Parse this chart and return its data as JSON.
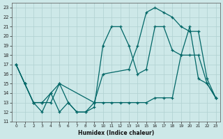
{
  "xlabel": "Humidex (Indice chaleur)",
  "bg_color": "#cde8e8",
  "grid_color": "#b0d0d0",
  "line_color": "#006666",
  "xlim": [
    -0.5,
    23.5
  ],
  "ylim": [
    11,
    23.5
  ],
  "xticks": [
    0,
    1,
    2,
    3,
    4,
    5,
    6,
    7,
    8,
    9,
    10,
    11,
    12,
    13,
    14,
    15,
    16,
    17,
    18,
    19,
    20,
    21,
    22,
    23
  ],
  "yticks": [
    11,
    12,
    13,
    14,
    15,
    16,
    17,
    18,
    19,
    20,
    21,
    22,
    23
  ],
  "line1_x": [
    0,
    1,
    2,
    3,
    4,
    5,
    6,
    7,
    8,
    9,
    10,
    11,
    12,
    13,
    14,
    15,
    16,
    17,
    18,
    19,
    20,
    21,
    22,
    23
  ],
  "line1_y": [
    17,
    15,
    13,
    12,
    14,
    12,
    13,
    12,
    12,
    12.5,
    19,
    21,
    21,
    19,
    16,
    16.5,
    21,
    21,
    18.5,
    18,
    21,
    15.5,
    15,
    13.5
  ],
  "line2_x": [
    0,
    1,
    2,
    3,
    4,
    5,
    9,
    10,
    13,
    14,
    15,
    16,
    17,
    18,
    19,
    20,
    21,
    22,
    23
  ],
  "line2_y": [
    17,
    15,
    13,
    13,
    14,
    15,
    13,
    16,
    16.5,
    19,
    22.5,
    23,
    22.5,
    22,
    21,
    20.5,
    20.5,
    15.5,
    13.5
  ],
  "line3_x": [
    0,
    1,
    2,
    3,
    4,
    5,
    6,
    7,
    8,
    9,
    10,
    11,
    12,
    13,
    14,
    15,
    16,
    17,
    18,
    19,
    20,
    21,
    22,
    23
  ],
  "line3_y": [
    17,
    15,
    13,
    13,
    13,
    15,
    13,
    12,
    12,
    13,
    13,
    13,
    13,
    13,
    13,
    13,
    13.5,
    13.5,
    13.5,
    18,
    18,
    18,
    15,
    13.5
  ]
}
